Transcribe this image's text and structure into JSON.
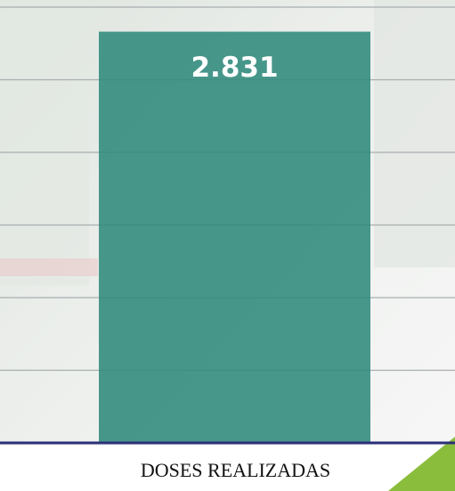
{
  "chart_data": {
    "type": "bar",
    "categories": [
      "DOSES REALIZADAS"
    ],
    "values": [
      2831
    ],
    "value_labels": [
      "2.831"
    ],
    "color": "#2f8a7c",
    "ylim": [
      0,
      3000
    ],
    "yticks": [
      0,
      500,
      1000,
      1500,
      2000,
      2500,
      3000
    ],
    "grid": true
  }
}
